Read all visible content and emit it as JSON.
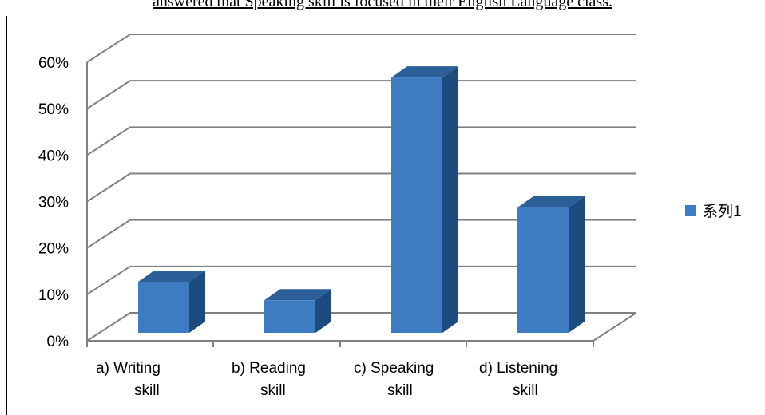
{
  "caption": "answered that Speaking skill is focused in their English Language class.",
  "chart_data": {
    "type": "bar",
    "categories": [
      [
        "a)     Writing",
        "skill"
      ],
      [
        "b) Reading",
        "skill"
      ],
      [
        "c) Speaking",
        "skill"
      ],
      [
        "d) Listening",
        "skill"
      ]
    ],
    "series": [
      {
        "name": "系列1",
        "values": [
          0.11,
          0.07,
          0.55,
          0.27
        ]
      }
    ],
    "ylim": [
      0,
      0.6
    ],
    "yticks": [
      0,
      0.1,
      0.2,
      0.3,
      0.4,
      0.5,
      0.6
    ],
    "ytick_labels": [
      "0%",
      "10%",
      "20%",
      "30%",
      "40%",
      "50%",
      "60%"
    ],
    "grid": true,
    "legend_position": "right",
    "colors": {
      "bar_front": "#3d7cc0",
      "bar_side": "#1b4b7f",
      "bar_top": "#2c5f98",
      "grid": "#808080"
    }
  }
}
